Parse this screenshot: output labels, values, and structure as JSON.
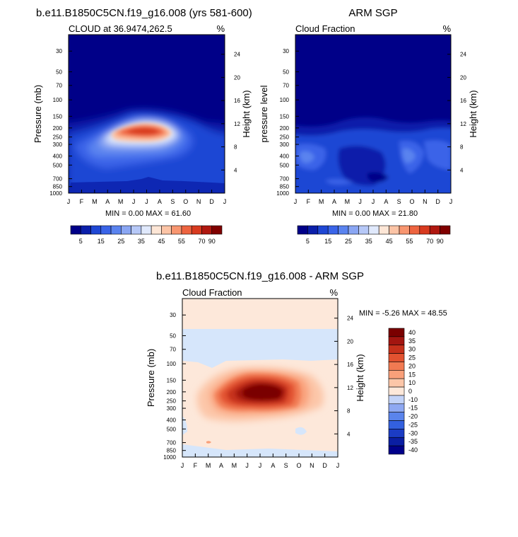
{
  "colors": {
    "positive_scale": [
      "#000088",
      "#0b1faa",
      "#1f47d4",
      "#3a64e8",
      "#5a83ef",
      "#8aa6f3",
      "#b6c8f7",
      "#e0e9fc",
      "#fde6d6",
      "#fcc4a6",
      "#f89670",
      "#ee6440",
      "#d83a1f",
      "#b01810",
      "#800000"
    ],
    "diff_scale": [
      "#00008a",
      "#0a1ea3",
      "#1b3cc4",
      "#3360df",
      "#5a84ec",
      "#8ea8f2",
      "#c3d3f8",
      "#fde8da",
      "#fcc6a8",
      "#f9a07a",
      "#f17a52",
      "#e25230",
      "#c6301b",
      "#a31510",
      "#7a0000"
    ]
  },
  "months": [
    "J",
    "F",
    "M",
    "A",
    "M",
    "J",
    "J",
    "A",
    "S",
    "O",
    "N",
    "D",
    "J"
  ],
  "pressure_ticks": [
    "30",
    "50",
    "70",
    "100",
    "150",
    "200",
    "250",
    "300",
    "400",
    "500",
    "700",
    "850",
    "1000"
  ],
  "height_ticks": [
    "24",
    "20",
    "16",
    "12",
    "8",
    "4"
  ],
  "panel1": {
    "title": "b.e11.B1850C5CN.f19_g16.008 (yrs 581-600)",
    "left_label": "CLOUD at 36.9474,262.5",
    "right_label": "%",
    "ylabel": "Pressure (mb)",
    "y2label": "Height (km)",
    "stats": "MIN =   0.00 MAX =  61.60"
  },
  "panel2": {
    "title": "ARM SGP",
    "left_label": "Cloud Fraction",
    "right_label": "%",
    "ylabel": "pressure level",
    "y2label": "Height (km)",
    "stats": "MIN =   0.00 MAX =  21.80"
  },
  "panel3": {
    "title": "b.e11.B1850C5CN.f19_g16.008 - ARM SGP",
    "left_label": "Cloud Fraction",
    "right_label": "%",
    "ylabel": "Pressure (mb)",
    "y2label": "Height (km)",
    "stats": "MIN =  -5.26 MAX =  48.55"
  },
  "colorbar_labels": [
    "5",
    "15",
    "25",
    "35",
    "45",
    "55",
    "70",
    "90"
  ],
  "diff_colorbar_labels": [
    "40",
    "35",
    "30",
    "25",
    "20",
    "15",
    "10",
    "0",
    "-10",
    "-15",
    "-20",
    "-25",
    "-30",
    "-35",
    "-40"
  ],
  "chart_data": [
    {
      "type": "heatmap",
      "title": "b.e11.B1850C5CN.f19_g16.008 (yrs 581-600)",
      "subtitle": "CLOUD at 36.9474,262.5",
      "xlabel": "",
      "ylabel": "Pressure (mb)",
      "y2label": "Height (km)",
      "units": "%",
      "x": [
        "J",
        "F",
        "M",
        "A",
        "M",
        "J",
        "J",
        "A",
        "S",
        "O",
        "N",
        "D",
        "J"
      ],
      "y_pressure": [
        30,
        50,
        70,
        100,
        150,
        200,
        250,
        300,
        400,
        500,
        700,
        850,
        1000
      ],
      "levels": [
        5,
        10,
        15,
        20,
        25,
        30,
        35,
        40,
        45,
        50,
        55,
        60,
        70,
        80,
        90
      ],
      "min": 0.0,
      "max": 61.6,
      "features": [
        {
          "month": 6.5,
          "pressure": 225,
          "value": 60
        },
        {
          "month": 3,
          "pressure": 400,
          "value": 25
        },
        {
          "month": 6,
          "pressure": 600,
          "value": 12
        },
        {
          "month": 1,
          "pressure": 100,
          "value": 0
        }
      ]
    },
    {
      "type": "heatmap",
      "title": "ARM SGP",
      "subtitle": "Cloud Fraction",
      "ylabel": "pressure level",
      "y2label": "Height (km)",
      "units": "%",
      "x": [
        "J",
        "F",
        "M",
        "A",
        "M",
        "J",
        "J",
        "A",
        "S",
        "O",
        "N",
        "D",
        "J"
      ],
      "y_pressure": [
        30,
        50,
        70,
        100,
        150,
        200,
        250,
        300,
        400,
        500,
        700,
        850,
        1000
      ],
      "levels": [
        5,
        10,
        15,
        20,
        25,
        30,
        35,
        40,
        45,
        50,
        55,
        60,
        70,
        80,
        90
      ],
      "min": 0.0,
      "max": 21.8,
      "features": [
        {
          "month": 2,
          "pressure": 350,
          "value": 15
        },
        {
          "month": 6,
          "pressure": 700,
          "value": 3
        },
        {
          "month": 10,
          "pressure": 400,
          "value": 15
        },
        {
          "month": 1,
          "pressure": 100,
          "value": 0
        }
      ]
    },
    {
      "type": "heatmap",
      "title": "b.e11.B1850C5CN.f19_g16.008 - ARM SGP",
      "subtitle": "Cloud Fraction",
      "ylabel": "Pressure (mb)",
      "y2label": "Height (km)",
      "units": "%",
      "x": [
        "J",
        "F",
        "M",
        "A",
        "M",
        "J",
        "J",
        "A",
        "S",
        "O",
        "N",
        "D",
        "J"
      ],
      "y_pressure": [
        30,
        50,
        70,
        100,
        150,
        200,
        250,
        300,
        400,
        500,
        700,
        850,
        1000
      ],
      "levels": [
        -40,
        -35,
        -30,
        -25,
        -20,
        -15,
        -10,
        0,
        10,
        15,
        20,
        25,
        30,
        35,
        40
      ],
      "min": -5.26,
      "max": 48.55,
      "features": [
        {
          "month": 6.5,
          "pressure": 200,
          "value": 45
        },
        {
          "month": 5,
          "pressure": 300,
          "value": 20
        },
        {
          "month": 6,
          "pressure": 70,
          "value": -3
        },
        {
          "month": 6,
          "pressure": 700,
          "value": 3
        }
      ]
    }
  ]
}
